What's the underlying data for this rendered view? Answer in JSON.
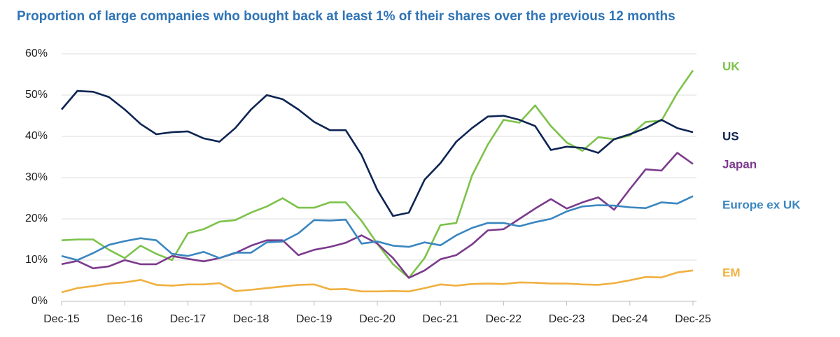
{
  "chart_data": {
    "type": "line",
    "title": "Proportion of large companies who bought back at least 1% of their shares over the previous 12 months",
    "categories": [
      "Dec-15",
      null,
      null,
      null,
      "Dec-16",
      null,
      null,
      null,
      "Dec-17",
      null,
      null,
      null,
      "Dec-18",
      null,
      null,
      null,
      "Dec-19",
      null,
      null,
      null,
      "Dec-20",
      null,
      null,
      null,
      "Dec-21",
      null,
      null,
      null,
      "Dec-22",
      null,
      null,
      null,
      "Dec-23",
      null,
      null,
      null,
      "Dec-24",
      null,
      null,
      null,
      "Dec-25"
    ],
    "ylim": [
      0,
      60
    ],
    "yticks": [
      {
        "value": 0,
        "label": "0%"
      },
      {
        "value": 10,
        "label": "10%"
      },
      {
        "value": 20,
        "label": "20%"
      },
      {
        "value": 30,
        "label": "30%"
      },
      {
        "value": 40,
        "label": "40%"
      },
      {
        "value": 50,
        "label": "50%"
      },
      {
        "value": 60,
        "label": "60%"
      }
    ],
    "grid": true,
    "series": [
      {
        "name": "UK",
        "color": "#7dc24b",
        "values": [
          14.8,
          15,
          15,
          12.5,
          10.5,
          13.5,
          11.5,
          10,
          16.5,
          17.5,
          19.3,
          19.7,
          21.5,
          23,
          25,
          22.7,
          22.7,
          24,
          24,
          19.5,
          14,
          9,
          5.7,
          10.5,
          18.5,
          19,
          30.5,
          38,
          44,
          43.3,
          47.5,
          42.5,
          38.5,
          36.5,
          39.8,
          39.3,
          40.2,
          43.5,
          43.8,
          50.5,
          56
        ]
      },
      {
        "name": "US",
        "color": "#0d2453",
        "values": [
          46.5,
          51,
          50.8,
          49.5,
          46.5,
          43,
          40.5,
          41,
          41.2,
          39.5,
          38.7,
          42,
          46.5,
          50,
          49,
          46.5,
          43.5,
          41.5,
          41.5,
          35.5,
          27,
          20.7,
          21.5,
          29.5,
          33.5,
          38.7,
          42,
          44.8,
          45,
          44,
          42.5,
          36.7,
          37.5,
          37.2,
          36,
          39.3,
          40.5,
          42,
          44,
          42,
          41
        ]
      },
      {
        "name": "Japan",
        "color": "#7b3a8c",
        "values": [
          9,
          9.8,
          8,
          8.5,
          10,
          9,
          9,
          11,
          10.3,
          9.7,
          10.5,
          11.7,
          13.5,
          14.8,
          14.8,
          11.2,
          12.5,
          13.2,
          14.2,
          16,
          14,
          10.5,
          5.7,
          7.5,
          10.2,
          11.2,
          13.8,
          17.2,
          17.5,
          20,
          22.5,
          24.8,
          22.5,
          24,
          25.2,
          22.2,
          27.2,
          32,
          31.7,
          36,
          33.3
        ]
      },
      {
        "name": "Europe ex UK",
        "color": "#3a86c0",
        "values": [
          11,
          10,
          11.7,
          13.7,
          14.6,
          15.3,
          14.8,
          11.5,
          11,
          12,
          10.5,
          11.8,
          11.8,
          14.3,
          14.5,
          16.5,
          19.7,
          19.6,
          19.8,
          14,
          14.5,
          13.5,
          13.2,
          14.3,
          13.6,
          16,
          17.8,
          19,
          19,
          18.2,
          19.2,
          20,
          21.8,
          23,
          23.3,
          23.2,
          22.8,
          22.6,
          24,
          23.7,
          25.5
        ]
      },
      {
        "name": "EM",
        "color": "#f0b040",
        "values": [
          2.2,
          3.2,
          3.7,
          4.3,
          4.6,
          5.2,
          4,
          3.8,
          4.1,
          4.1,
          4.4,
          2.5,
          2.8,
          3.2,
          3.6,
          4,
          4.1,
          2.9,
          3,
          2.4,
          2.4,
          2.5,
          2.4,
          3.2,
          4.1,
          3.8,
          4.2,
          4.3,
          4.2,
          4.6,
          4.5,
          4.3,
          4.3,
          4.1,
          4,
          4.4,
          5.1,
          5.9,
          5.8,
          7,
          7.5
        ]
      }
    ]
  }
}
